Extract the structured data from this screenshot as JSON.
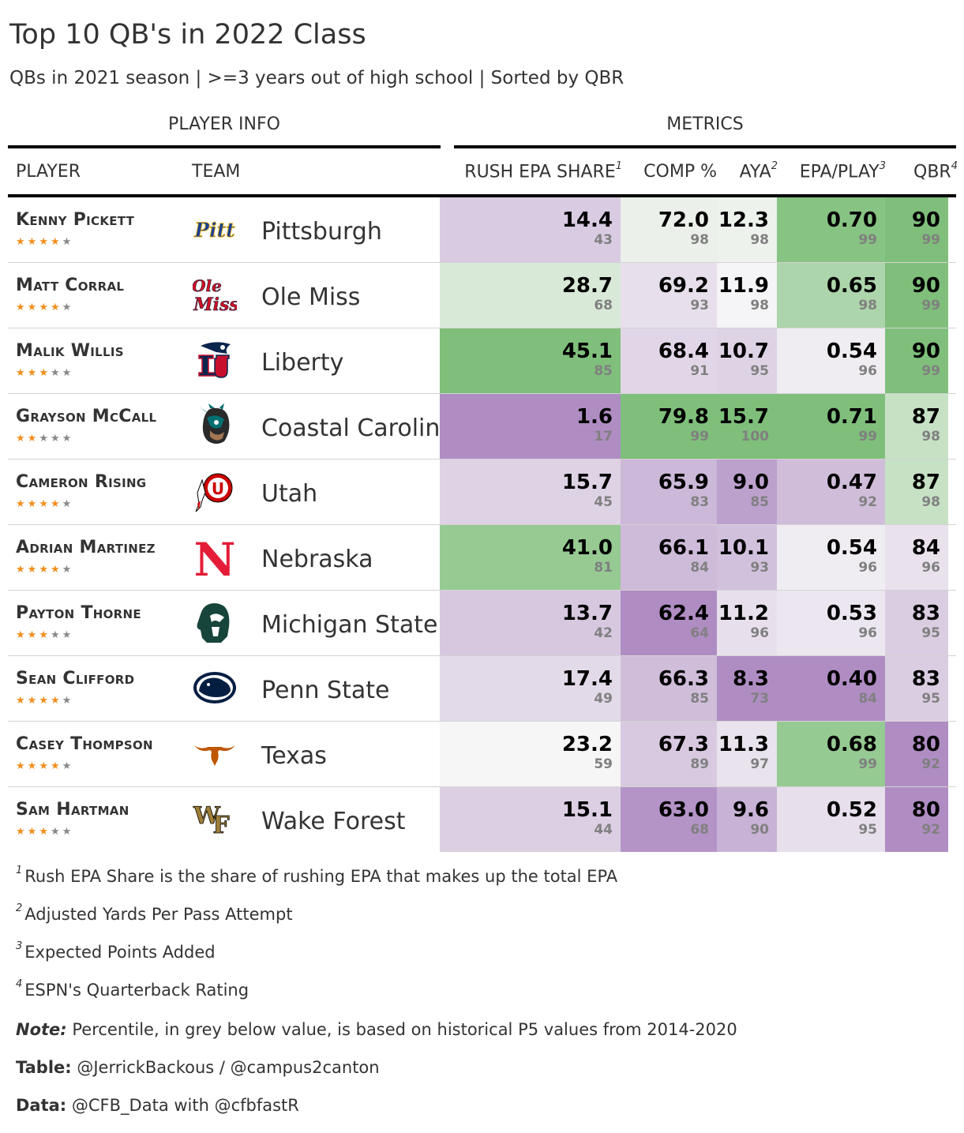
{
  "chart_data": {
    "type": "table",
    "title": "Top 10 QB's in 2022 Class",
    "subtitle": "QBs in 2021 season | >=3 years out of high school | Sorted by QBR",
    "spanners": {
      "player_info": "PLAYER INFO",
      "metrics": "METRICS"
    },
    "columns": {
      "player": "PLAYER",
      "team": "TEAM",
      "rush": {
        "label": "RUSH EPA SHARE",
        "sup": "1"
      },
      "comp": {
        "label": "COMP %",
        "sup": ""
      },
      "aya": {
        "label": "AYA",
        "sup": "2"
      },
      "epa": {
        "label": "EPA/PLAY",
        "sup": "3"
      },
      "qbr": {
        "label": "QBR",
        "sup": "4"
      }
    },
    "rows": [
      {
        "player": "Kenny Pickett",
        "stars": 4,
        "team": "Pittsburgh",
        "logo": "pitt-logo",
        "rush": "14.4",
        "rush_pct": "43",
        "comp": "72.0",
        "comp_pct": "98",
        "aya": "12.3",
        "aya_pct": "98",
        "epa": "0.70",
        "epa_pct": "99",
        "qbr": "90",
        "qbr_pct": "99"
      },
      {
        "player": "Matt Corral",
        "stars": 4,
        "team": "Ole Miss",
        "logo": "ole-miss-logo",
        "rush": "28.7",
        "rush_pct": "68",
        "comp": "69.2",
        "comp_pct": "93",
        "aya": "11.9",
        "aya_pct": "98",
        "epa": "0.65",
        "epa_pct": "98",
        "qbr": "90",
        "qbr_pct": "99"
      },
      {
        "player": "Malik Willis",
        "stars": 3,
        "team": "Liberty",
        "logo": "liberty-logo",
        "rush": "45.1",
        "rush_pct": "85",
        "comp": "68.4",
        "comp_pct": "91",
        "aya": "10.7",
        "aya_pct": "95",
        "epa": "0.54",
        "epa_pct": "96",
        "qbr": "90",
        "qbr_pct": "99"
      },
      {
        "player": "Grayson McCall",
        "stars": 2,
        "team": "Coastal Carolina",
        "logo": "coastal-carolina-logo",
        "rush": "1.6",
        "rush_pct": "17",
        "comp": "79.8",
        "comp_pct": "99",
        "aya": "15.7",
        "aya_pct": "100",
        "epa": "0.71",
        "epa_pct": "99",
        "qbr": "87",
        "qbr_pct": "98"
      },
      {
        "player": "Cameron Rising",
        "stars": 4,
        "team": "Utah",
        "logo": "utah-logo",
        "rush": "15.7",
        "rush_pct": "45",
        "comp": "65.9",
        "comp_pct": "83",
        "aya": "9.0",
        "aya_pct": "85",
        "epa": "0.47",
        "epa_pct": "92",
        "qbr": "87",
        "qbr_pct": "98"
      },
      {
        "player": "Adrian Martinez",
        "stars": 4,
        "team": "Nebraska",
        "logo": "nebraska-logo",
        "rush": "41.0",
        "rush_pct": "81",
        "comp": "66.1",
        "comp_pct": "84",
        "aya": "10.1",
        "aya_pct": "93",
        "epa": "0.54",
        "epa_pct": "96",
        "qbr": "84",
        "qbr_pct": "96"
      },
      {
        "player": "Payton Thorne",
        "stars": 3,
        "team": "Michigan State",
        "logo": "michigan-state-logo",
        "rush": "13.7",
        "rush_pct": "42",
        "comp": "62.4",
        "comp_pct": "64",
        "aya": "11.2",
        "aya_pct": "96",
        "epa": "0.53",
        "epa_pct": "96",
        "qbr": "83",
        "qbr_pct": "95"
      },
      {
        "player": "Sean Clifford",
        "stars": 4,
        "team": "Penn State",
        "logo": "penn-state-logo",
        "rush": "17.4",
        "rush_pct": "49",
        "comp": "66.3",
        "comp_pct": "85",
        "aya": "8.3",
        "aya_pct": "73",
        "epa": "0.40",
        "epa_pct": "84",
        "qbr": "83",
        "qbr_pct": "95"
      },
      {
        "player": "Casey Thompson",
        "stars": 4,
        "team": "Texas",
        "logo": "texas-logo",
        "rush": "23.2",
        "rush_pct": "59",
        "comp": "67.3",
        "comp_pct": "89",
        "aya": "11.3",
        "aya_pct": "97",
        "epa": "0.68",
        "epa_pct": "99",
        "qbr": "80",
        "qbr_pct": "92"
      },
      {
        "player": "Sam Hartman",
        "stars": 3,
        "team": "Wake Forest",
        "logo": "wake-forest-logo",
        "rush": "15.1",
        "rush_pct": "44",
        "comp": "63.0",
        "comp_pct": "68",
        "aya": "9.6",
        "aya_pct": "90",
        "epa": "0.52",
        "epa_pct": "95",
        "qbr": "80",
        "qbr_pct": "92"
      }
    ],
    "colors": {
      "low": "#af8dc3",
      "mid": "#f7f7f7",
      "high": "#7fbf7b",
      "star_filled": "#f28e1c",
      "star_empty": "#888888",
      "percentile_text": "#808080"
    },
    "footnotes": [
      {
        "mark": "1",
        "text": "Rush EPA Share is the share of rushing EPA that makes up the total EPA"
      },
      {
        "mark": "2",
        "text": "Adjusted Yards Per Pass Attempt"
      },
      {
        "mark": "3",
        "text": "Expected Points Added"
      },
      {
        "mark": "4",
        "text": "ESPN's Quarterback Rating"
      }
    ],
    "source_notes": [
      {
        "label": "Note:",
        "text": " Percentile, in grey below value, is based on historical P5 values from 2014-2020"
      },
      {
        "label": "Table:",
        "text": " @JerrickBackous / @campus2canton"
      },
      {
        "label": "Data:",
        "text": " @CFB_Data with @cfbfastR"
      }
    ]
  }
}
